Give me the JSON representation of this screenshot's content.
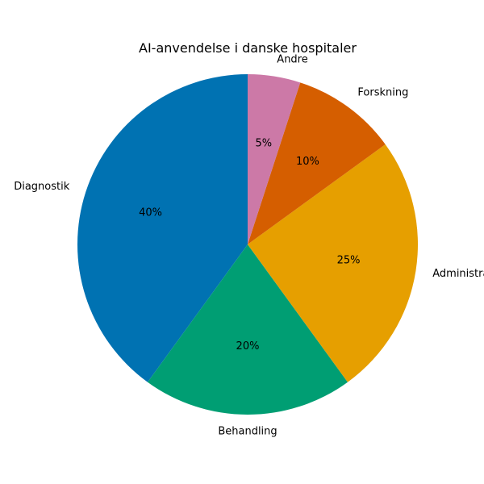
{
  "chart_data": {
    "type": "pie",
    "title": "AI-anvendelse i danske hospitaler",
    "categories": [
      "Diagnostik",
      "Behandling",
      "Administrative opgaver",
      "Forskning",
      "Andre"
    ],
    "values": [
      40,
      20,
      25,
      10,
      5
    ],
    "percent_labels": [
      "40%",
      "20%",
      "25%",
      "10%",
      "5%"
    ],
    "colors": [
      "#0072b2",
      "#009e73",
      "#e69f00",
      "#d55e00",
      "#cc79a7"
    ],
    "start_angle_deg": 90,
    "direction": "counterclockwise"
  }
}
